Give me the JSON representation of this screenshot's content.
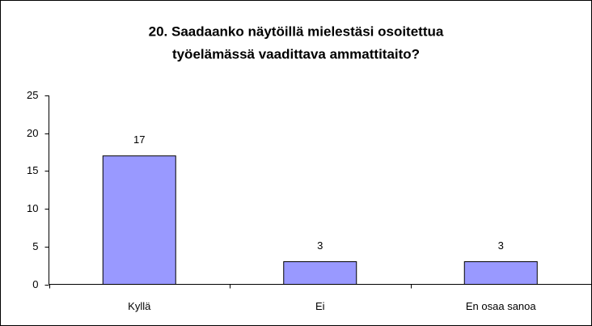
{
  "chart_data": {
    "type": "bar",
    "title": [
      "20. Saadaanko näytöillä mielestäsi osoitettua",
      "työelämässä vaadittava ammattitaito?"
    ],
    "categories": [
      "Kyllä",
      "Ei",
      "En osaa sanoa"
    ],
    "values": [
      17,
      3,
      3
    ],
    "color": "#9999ff",
    "ylim": [
      0,
      25
    ],
    "yticks": [
      0,
      5,
      10,
      15,
      20,
      25
    ],
    "grid": false
  }
}
